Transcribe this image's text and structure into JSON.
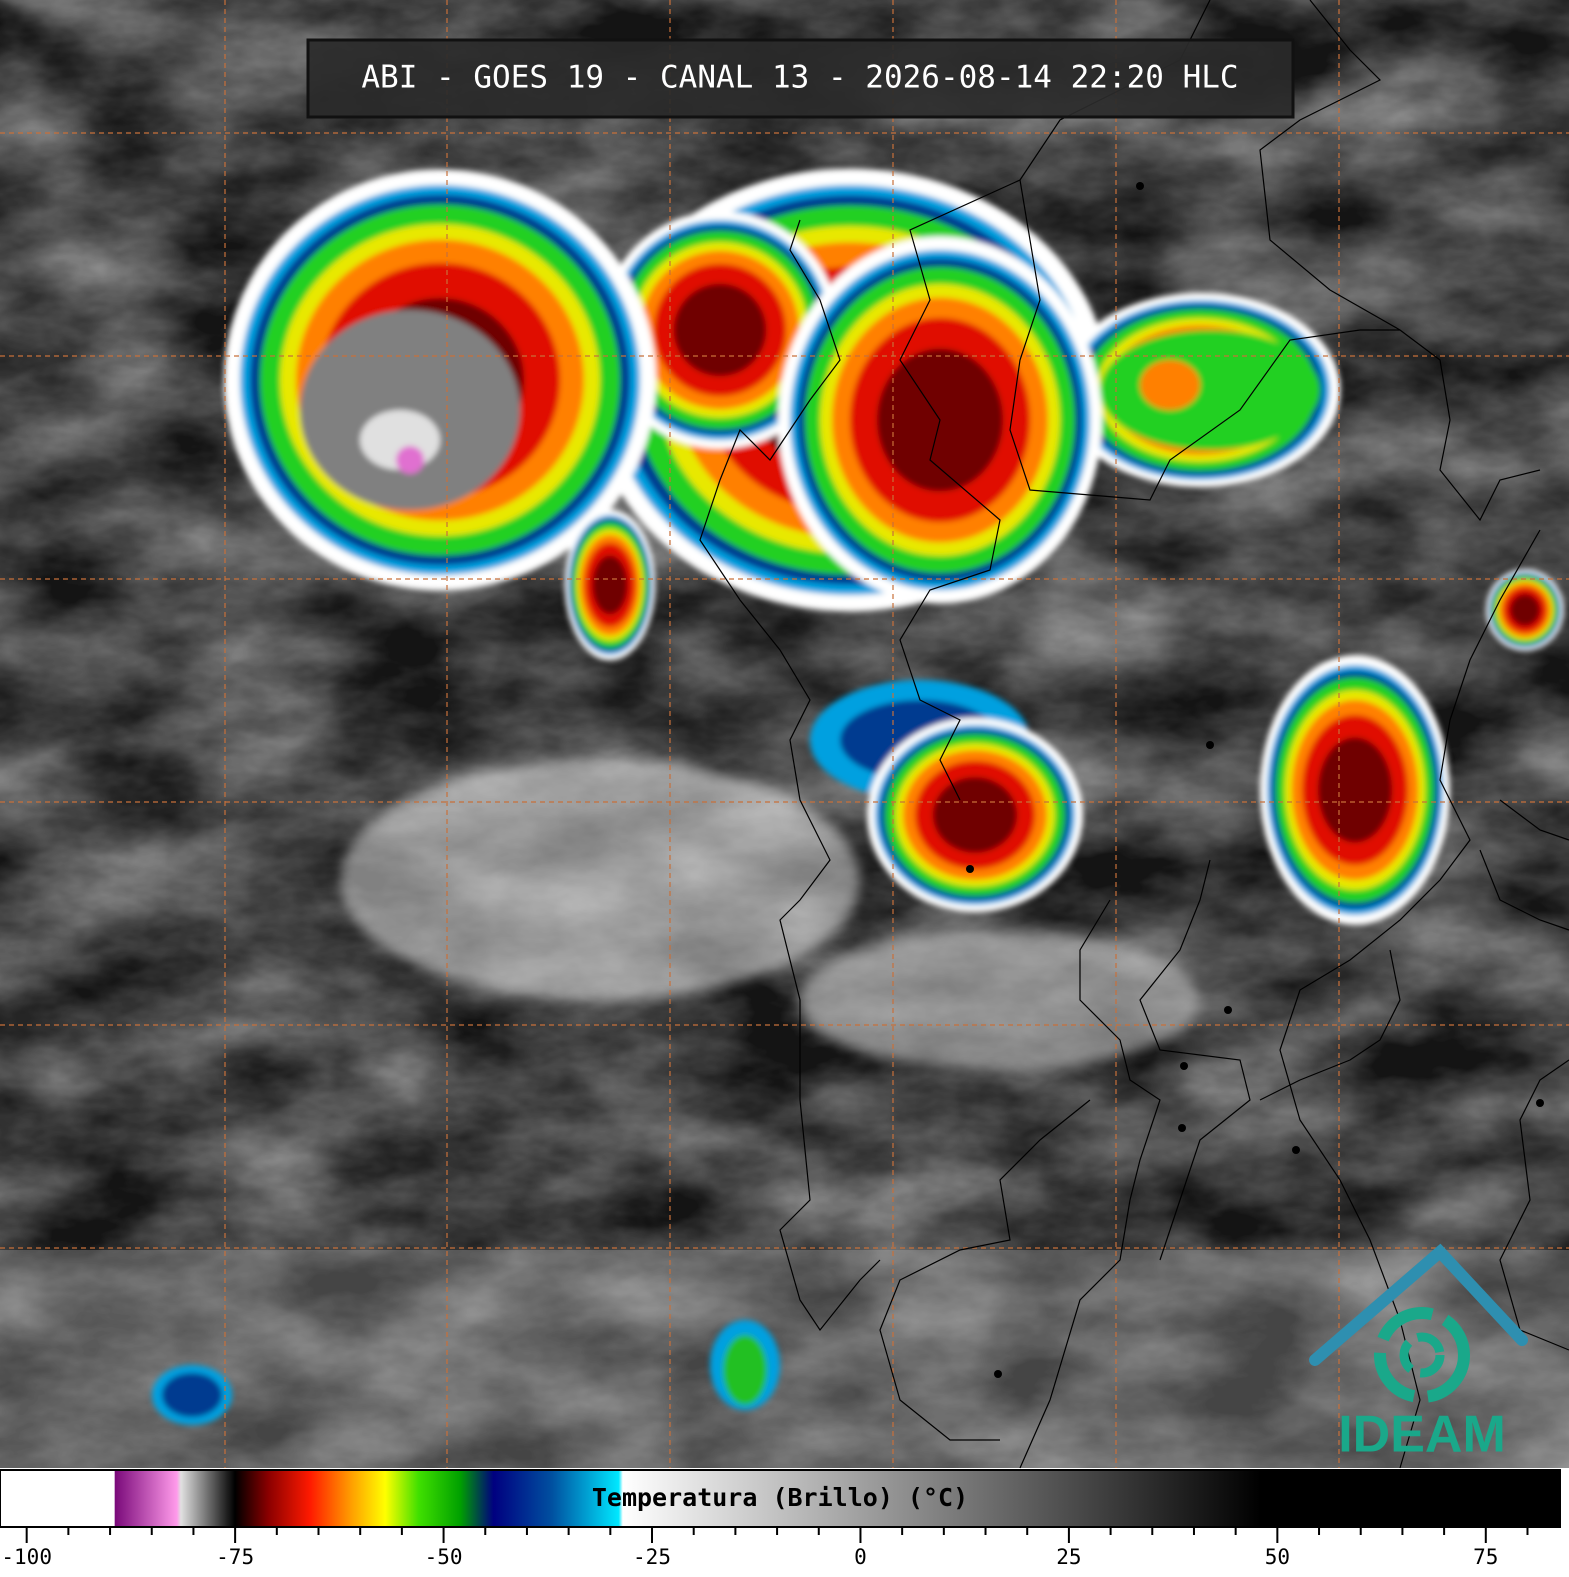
{
  "header": {
    "title": "ABI - GOES 19 - CANAL 13 - 2026-08-14 22:20 HLC"
  },
  "logo": {
    "text": "IDEAM"
  },
  "colorbar": {
    "label": "Temperatura (Brillo) (°C)",
    "lim": [
      -103.2,
      83.9
    ],
    "ticks": [
      -100,
      -75,
      -50,
      -25,
      0,
      25,
      50,
      75
    ],
    "minor_ticks": [
      -95,
      -90,
      -85,
      -80,
      -70,
      -65,
      -60,
      -55,
      -45,
      -40,
      -35,
      -30,
      -20,
      -15,
      -10,
      -5,
      5,
      10,
      15,
      20,
      30,
      35,
      40,
      45,
      55,
      60,
      65,
      70,
      80
    ],
    "stops": [
      {
        "value": -103.2,
        "color": "#ffffff"
      },
      {
        "value": -89.5,
        "color": "#ffffff"
      },
      {
        "value": -89.4,
        "color": "#7a0a7a"
      },
      {
        "value": -82,
        "color": "#ff9aea"
      },
      {
        "value": -81.5,
        "color": "#e0e0e0"
      },
      {
        "value": -76,
        "color": "#202020"
      },
      {
        "value": -75,
        "color": "#000000"
      },
      {
        "value": -71,
        "color": "#8b0000"
      },
      {
        "value": -66,
        "color": "#ff1a00"
      },
      {
        "value": -61,
        "color": "#ffa000"
      },
      {
        "value": -57,
        "color": "#ffff00"
      },
      {
        "value": -53,
        "color": "#40e000"
      },
      {
        "value": -48,
        "color": "#00a000"
      },
      {
        "value": -44,
        "color": "#000080"
      },
      {
        "value": -37,
        "color": "#0050a0"
      },
      {
        "value": -29,
        "color": "#00e8ff"
      },
      {
        "value": -28.5,
        "color": "#ffffff"
      },
      {
        "value": 48,
        "color": "#000000"
      },
      {
        "value": 83.9,
        "color": "#000000"
      }
    ]
  }
}
